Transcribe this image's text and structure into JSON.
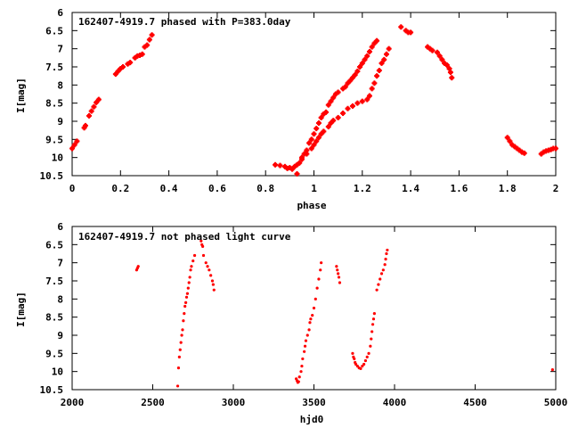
{
  "chart_data": [
    {
      "type": "scatter",
      "title": "162407-4919.7 phased with P=383.0day",
      "xlabel": "phase",
      "ylabel": "I[mag]",
      "xlim": [
        0,
        2
      ],
      "ylim": [
        10.5,
        6
      ],
      "y_inverted": true,
      "grid": false,
      "marker_color": "#ff0000",
      "marker": "plus",
      "x_ticks": [
        "0",
        "0.2",
        "0.4",
        "0.6",
        "0.8",
        "1",
        "1.2",
        "1.4",
        "1.6",
        "1.8",
        "2"
      ],
      "y_ticks": [
        "6",
        "6.5",
        "7",
        "7.5",
        "8",
        "8.5",
        "9",
        "9.5",
        "10",
        "10.5"
      ],
      "series": [
        {
          "points": [
            [
              0.0,
              9.75
            ],
            [
              0.01,
              9.65
            ],
            [
              0.02,
              9.55
            ],
            [
              0.05,
              9.18
            ],
            [
              0.055,
              9.12
            ],
            [
              0.07,
              8.85
            ],
            [
              0.08,
              8.72
            ],
            [
              0.09,
              8.6
            ],
            [
              0.1,
              8.48
            ],
            [
              0.11,
              8.4
            ],
            [
              0.18,
              7.7
            ],
            [
              0.19,
              7.62
            ],
            [
              0.2,
              7.55
            ],
            [
              0.21,
              7.5
            ],
            [
              0.23,
              7.42
            ],
            [
              0.24,
              7.38
            ],
            [
              0.26,
              7.25
            ],
            [
              0.27,
              7.2
            ],
            [
              0.28,
              7.18
            ],
            [
              0.29,
              7.15
            ],
            [
              0.3,
              6.95
            ],
            [
              0.31,
              6.9
            ],
            [
              0.32,
              6.75
            ],
            [
              0.33,
              6.62
            ],
            [
              0.84,
              10.2
            ],
            [
              0.86,
              10.22
            ],
            [
              0.88,
              10.25
            ],
            [
              0.89,
              10.3
            ],
            [
              0.9,
              10.28
            ],
            [
              0.91,
              10.32
            ],
            [
              0.92,
              10.25
            ],
            [
              0.93,
              10.45
            ],
            [
              0.94,
              10.15
            ],
            [
              0.95,
              10.0
            ],
            [
              0.96,
              9.9
            ],
            [
              0.97,
              9.8
            ],
            [
              0.98,
              9.6
            ],
            [
              0.99,
              9.5
            ],
            [
              1.0,
              9.35
            ],
            [
              1.01,
              9.2
            ],
            [
              1.02,
              9.05
            ],
            [
              1.03,
              8.9
            ],
            [
              1.04,
              8.8
            ],
            [
              1.05,
              8.75
            ],
            [
              1.06,
              8.55
            ],
            [
              1.07,
              8.45
            ],
            [
              1.08,
              8.35
            ],
            [
              1.09,
              8.25
            ],
            [
              1.1,
              8.2
            ],
            [
              1.12,
              8.1
            ],
            [
              1.13,
              8.05
            ],
            [
              1.14,
              7.95
            ],
            [
              1.15,
              7.88
            ],
            [
              1.16,
              7.8
            ],
            [
              1.17,
              7.72
            ],
            [
              1.18,
              7.62
            ],
            [
              1.19,
              7.5
            ],
            [
              1.2,
              7.4
            ],
            [
              1.21,
              7.3
            ],
            [
              1.22,
              7.2
            ],
            [
              1.23,
              7.08
            ],
            [
              1.24,
              6.95
            ],
            [
              1.25,
              6.85
            ],
            [
              1.26,
              6.78
            ],
            [
              0.93,
              10.2
            ],
            [
              0.95,
              10.05
            ],
            [
              0.97,
              9.9
            ],
            [
              0.99,
              9.75
            ],
            [
              1.0,
              9.65
            ],
            [
              1.01,
              9.55
            ],
            [
              1.02,
              9.45
            ],
            [
              1.03,
              9.35
            ],
            [
              1.04,
              9.28
            ],
            [
              1.06,
              9.15
            ],
            [
              1.07,
              9.05
            ],
            [
              1.08,
              8.98
            ],
            [
              1.1,
              8.9
            ],
            [
              1.12,
              8.78
            ],
            [
              1.14,
              8.65
            ],
            [
              1.16,
              8.58
            ],
            [
              1.18,
              8.5
            ],
            [
              1.2,
              8.45
            ],
            [
              1.22,
              8.4
            ],
            [
              1.23,
              8.3
            ],
            [
              1.24,
              8.1
            ],
            [
              1.25,
              7.95
            ],
            [
              1.26,
              7.75
            ],
            [
              1.27,
              7.6
            ],
            [
              1.28,
              7.4
            ],
            [
              1.29,
              7.3
            ],
            [
              1.3,
              7.15
            ],
            [
              1.31,
              7.0
            ],
            [
              1.36,
              6.4
            ],
            [
              1.38,
              6.5
            ],
            [
              1.39,
              6.55
            ],
            [
              1.4,
              6.55
            ],
            [
              1.47,
              6.95
            ],
            [
              1.48,
              7.0
            ],
            [
              1.49,
              7.05
            ],
            [
              1.51,
              7.1
            ],
            [
              1.52,
              7.2
            ],
            [
              1.53,
              7.3
            ],
            [
              1.54,
              7.4
            ],
            [
              1.55,
              7.45
            ],
            [
              1.56,
              7.55
            ],
            [
              1.565,
              7.65
            ],
            [
              1.57,
              7.8
            ],
            [
              1.8,
              9.45
            ],
            [
              1.81,
              9.55
            ],
            [
              1.82,
              9.65
            ],
            [
              1.83,
              9.7
            ],
            [
              1.84,
              9.75
            ],
            [
              1.85,
              9.8
            ],
            [
              1.86,
              9.85
            ],
            [
              1.87,
              9.88
            ],
            [
              1.94,
              9.9
            ],
            [
              1.95,
              9.85
            ],
            [
              1.96,
              9.82
            ],
            [
              1.97,
              9.8
            ],
            [
              1.98,
              9.78
            ],
            [
              1.99,
              9.75
            ],
            [
              2.0,
              9.75
            ]
          ]
        }
      ]
    },
    {
      "type": "scatter",
      "title": "162407-4919.7 not phased light curve",
      "xlabel": "hjd0",
      "ylabel": "I[mag]",
      "xlim": [
        2000,
        5000
      ],
      "ylim": [
        10.5,
        6
      ],
      "y_inverted": true,
      "grid": false,
      "marker_color": "#ff0000",
      "marker": "dot",
      "x_ticks": [
        "2000",
        "2500",
        "3000",
        "3500",
        "4000",
        "4500",
        "5000"
      ],
      "y_ticks": [
        "6",
        "6.5",
        "7",
        "7.5",
        "8",
        "8.5",
        "9",
        "9.5",
        "10",
        "10.5"
      ],
      "series": [
        {
          "points": [
            [
              2400,
              7.2
            ],
            [
              2405,
              7.15
            ],
            [
              2410,
              7.1
            ],
            [
              2655,
              10.4
            ],
            [
              2660,
              9.9
            ],
            [
              2665,
              9.6
            ],
            [
              2670,
              9.4
            ],
            [
              2675,
              9.2
            ],
            [
              2680,
              9.0
            ],
            [
              2685,
              8.85
            ],
            [
              2690,
              8.6
            ],
            [
              2695,
              8.4
            ],
            [
              2700,
              8.2
            ],
            [
              2705,
              8.1
            ],
            [
              2710,
              7.95
            ],
            [
              2715,
              7.85
            ],
            [
              2720,
              7.7
            ],
            [
              2725,
              7.55
            ],
            [
              2730,
              7.4
            ],
            [
              2735,
              7.2
            ],
            [
              2740,
              7.1
            ],
            [
              2750,
              6.95
            ],
            [
              2760,
              6.8
            ],
            [
              2800,
              6.4
            ],
            [
              2805,
              6.5
            ],
            [
              2810,
              6.55
            ],
            [
              2815,
              6.8
            ],
            [
              2830,
              7.0
            ],
            [
              2840,
              7.1
            ],
            [
              2850,
              7.2
            ],
            [
              2860,
              7.35
            ],
            [
              2870,
              7.5
            ],
            [
              2875,
              7.6
            ],
            [
              2880,
              7.75
            ],
            [
              3390,
              10.2
            ],
            [
              3395,
              10.25
            ],
            [
              3400,
              10.3
            ],
            [
              3405,
              10.28
            ],
            [
              3410,
              10.15
            ],
            [
              3420,
              10.0
            ],
            [
              3425,
              9.85
            ],
            [
              3430,
              9.65
            ],
            [
              3440,
              9.45
            ],
            [
              3445,
              9.3
            ],
            [
              3450,
              9.15
            ],
            [
              3460,
              9.0
            ],
            [
              3470,
              8.85
            ],
            [
              3475,
              8.65
            ],
            [
              3480,
              8.55
            ],
            [
              3490,
              8.45
            ],
            [
              3500,
              8.25
            ],
            [
              3510,
              8.0
            ],
            [
              3520,
              7.7
            ],
            [
              3530,
              7.45
            ],
            [
              3540,
              7.2
            ],
            [
              3545,
              7.0
            ],
            [
              3640,
              7.1
            ],
            [
              3645,
              7.2
            ],
            [
              3650,
              7.3
            ],
            [
              3655,
              7.4
            ],
            [
              3660,
              7.55
            ],
            [
              3740,
              9.5
            ],
            [
              3745,
              9.6
            ],
            [
              3750,
              9.65
            ],
            [
              3755,
              9.75
            ],
            [
              3760,
              9.8
            ],
            [
              3770,
              9.85
            ],
            [
              3780,
              9.9
            ],
            [
              3790,
              9.92
            ],
            [
              3800,
              9.85
            ],
            [
              3810,
              9.8
            ],
            [
              3820,
              9.7
            ],
            [
              3830,
              9.6
            ],
            [
              3840,
              9.5
            ],
            [
              3850,
              9.3
            ],
            [
              3855,
              9.1
            ],
            [
              3860,
              8.9
            ],
            [
              3865,
              8.7
            ],
            [
              3870,
              8.55
            ],
            [
              3875,
              8.4
            ],
            [
              3890,
              7.75
            ],
            [
              3900,
              7.6
            ],
            [
              3910,
              7.45
            ],
            [
              3920,
              7.3
            ],
            [
              3930,
              7.2
            ],
            [
              3940,
              7.05
            ],
            [
              3945,
              6.9
            ],
            [
              3950,
              6.75
            ],
            [
              3955,
              6.65
            ],
            [
              4980,
              9.95
            ]
          ]
        }
      ]
    }
  ]
}
